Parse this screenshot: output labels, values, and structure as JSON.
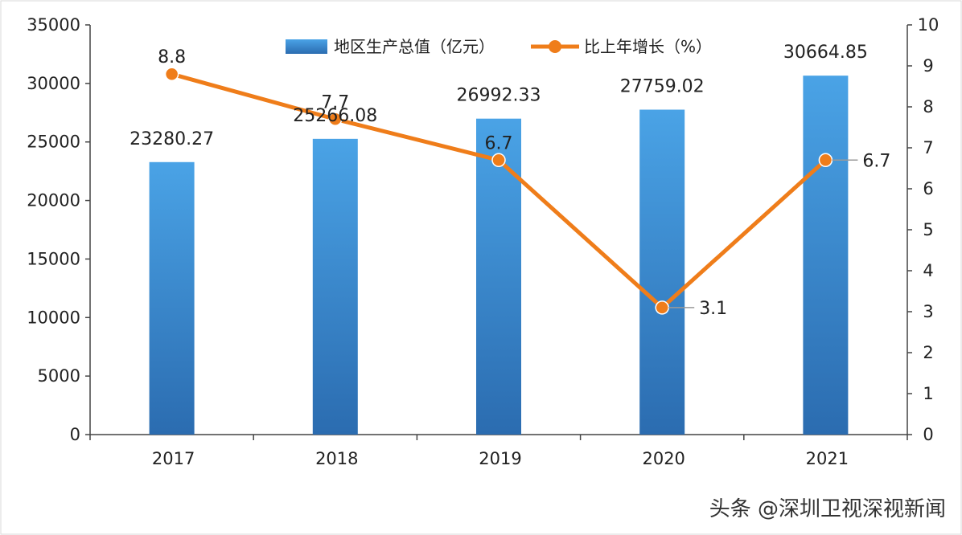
{
  "chart_data": {
    "type": "bar+line",
    "categories": [
      "2017",
      "2018",
      "2019",
      "2020",
      "2021"
    ],
    "series": [
      {
        "name": "地区生产总值（亿元）",
        "kind": "bar",
        "axis": "left",
        "values": [
          23280.27,
          25266.08,
          26992.33,
          27759.02,
          30664.85
        ],
        "labels": [
          "23280.27",
          "25266.08",
          "26992.33",
          "27759.02",
          "30664.85"
        ]
      },
      {
        "name": "比上年增长（%）",
        "kind": "line",
        "axis": "right",
        "values": [
          8.8,
          7.7,
          6.7,
          3.1,
          6.7
        ],
        "labels": [
          "8.8",
          "7.7",
          "6.7",
          "3.1",
          "6.7"
        ]
      }
    ],
    "y_left": {
      "min": 0,
      "max": 35000,
      "ticks": [
        "0",
        "5000",
        "10000",
        "15000",
        "20000",
        "25000",
        "30000",
        "35000"
      ]
    },
    "y_right": {
      "min": 0,
      "max": 10,
      "ticks": [
        "0",
        "1",
        "2",
        "3",
        "4",
        "5",
        "6",
        "7",
        "8",
        "9",
        "10"
      ]
    },
    "legend_position": "top-center",
    "grid": false
  },
  "watermark": "头条 @深圳卫视深视新闻",
  "colors": {
    "bar_top": "#4aa3e6",
    "bar_bottom": "#2b6cb0",
    "line": "#ef7d1a",
    "axis": "#444444",
    "leader": "#9a9a9a"
  }
}
